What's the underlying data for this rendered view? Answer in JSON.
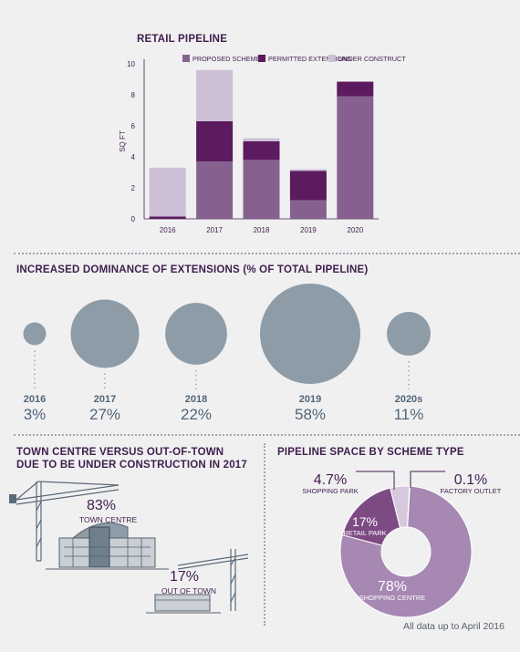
{
  "retail_pipeline": {
    "title": "RETAIL PIPELINE",
    "ylabel": "SQ FT"
  },
  "extensions": {
    "title": "INCREASED DOMINANCE OF EXTENSIONS (% OF TOTAL PIPELINE)"
  },
  "town_centre": {
    "title_line1": "TOWN CENTRE VERSUS OUT-OF-TOWN",
    "title_line2": "DUE TO BE UNDER CONSTRUCTION IN 2017",
    "tc_pct": "83%",
    "tc_label": "TOWN CENTRE",
    "oot_pct": "17%",
    "oot_label": "OUT OF TOWN"
  },
  "scheme_type": {
    "title": "PIPELINE SPACE BY SCHEME TYPE"
  },
  "footnote": "All data up to April 2016",
  "colors": {
    "proposed": "#86618f",
    "permitted": "#5b1b5e",
    "construction": "#cdbfd6",
    "bubble": "#8e9ca7",
    "donut_main": "#a688b3",
    "donut_dark": "#7d4a84"
  },
  "chart_data": [
    {
      "type": "bar",
      "title": "RETAIL PIPELINE",
      "ylabel": "SQ FT",
      "categories": [
        "2016",
        "2017",
        "2018",
        "2019",
        "2020"
      ],
      "ylim": [
        0,
        10
      ],
      "yticks": [
        0,
        2,
        4,
        6,
        8,
        10
      ],
      "stacked": true,
      "legend_position": "top",
      "series": [
        {
          "name": "PROPOSED SCHEMES",
          "values": [
            0,
            3.7,
            3.8,
            1.2,
            7.9
          ]
        },
        {
          "name": "PERMITTED EXTENSIONS",
          "values": [
            0.15,
            2.6,
            1.2,
            1.9,
            0.95
          ]
        },
        {
          "name": "UNDER CONSTRUCTION",
          "values": [
            3.15,
            3.3,
            0.2,
            0.1,
            0
          ]
        }
      ]
    },
    {
      "type": "bubble",
      "title": "INCREASED DOMINANCE OF EXTENSIONS (% OF TOTAL PIPELINE)",
      "categories": [
        "2016",
        "2017",
        "2018",
        "2019",
        "2020s"
      ],
      "values": [
        3,
        27,
        22,
        58,
        11
      ],
      "labels": [
        "3%",
        "27%",
        "22%",
        "58%",
        "11%"
      ]
    },
    {
      "type": "pie",
      "title": "PIPELINE SPACE BY SCHEME TYPE",
      "slices": [
        {
          "name": "SHOPPING CENTRE",
          "value": 78,
          "label": "78%"
        },
        {
          "name": "RETAIL PARK",
          "value": 17,
          "label": "17%"
        },
        {
          "name": "SHOPPING PARK",
          "value": 4.7,
          "label": "4.7%"
        },
        {
          "name": "FACTORY OUTLET",
          "value": 0.1,
          "label": "0.1%"
        }
      ]
    }
  ]
}
